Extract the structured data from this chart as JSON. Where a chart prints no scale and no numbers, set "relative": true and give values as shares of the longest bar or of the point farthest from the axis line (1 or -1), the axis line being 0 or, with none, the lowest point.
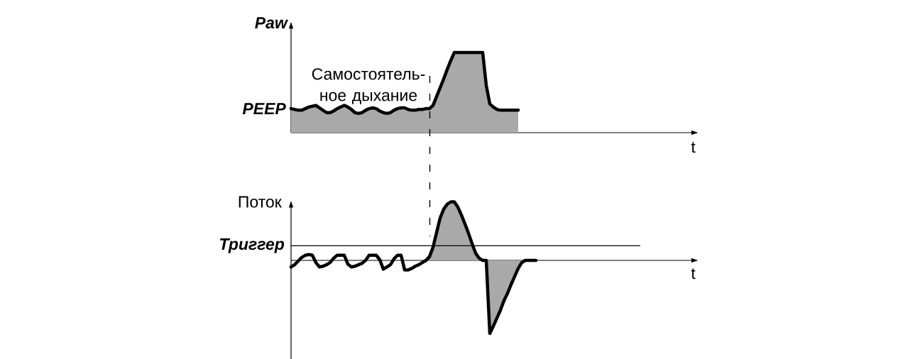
{
  "chart_data": [
    {
      "type": "area",
      "ylabel": "Paw",
      "xlabel": "t",
      "relative": true,
      "categories": [
        null,
        null,
        null,
        null,
        null,
        null,
        null,
        null,
        null,
        null,
        null,
        null,
        null,
        null,
        null,
        null,
        null,
        null,
        null,
        null,
        null,
        null,
        null,
        null,
        null,
        null,
        null,
        null,
        null,
        null,
        null,
        null,
        null,
        null,
        null,
        null,
        null,
        null,
        null,
        null,
        null,
        null,
        null,
        null,
        null,
        null,
        null,
        null,
        null,
        null,
        null,
        null,
        null,
        null,
        null,
        null,
        null,
        null,
        null,
        null,
        null,
        null,
        null,
        null,
        null,
        null,
        null,
        null,
        null,
        null,
        null,
        null,
        null,
        null,
        null,
        null,
        null,
        null,
        null,
        null,
        null,
        null,
        null,
        null,
        null,
        null,
        null,
        null,
        null,
        null,
        null,
        null,
        null,
        null,
        null,
        null,
        null,
        null,
        null,
        null,
        null,
        null,
        null,
        null,
        null,
        null,
        null,
        null,
        null,
        null,
        null,
        null,
        null,
        null,
        null
      ],
      "series": [
        {
          "color": "#a9a9a9",
          "values": [
            0.3,
            0.29,
            0.28,
            0.28,
            0.3,
            0.32,
            0.33,
            0.34,
            0.31,
            0.28,
            0.25,
            0.25,
            0.27,
            0.3,
            0.32,
            0.34,
            0.32,
            0.29,
            0.25,
            0.24,
            0.25,
            0.28,
            0.3,
            0.31,
            0.3,
            0.27,
            0.25,
            0.24,
            0.25,
            0.28,
            0.3,
            0.31,
            0.31,
            0.29,
            0.28,
            0.28,
            0.29,
            0.29,
            0.3,
            0.3,
            0.34,
            0.45,
            0.56,
            0.67,
            0.79,
            0.9,
            1,
            1,
            1,
            1,
            1,
            1,
            1,
            1,
            1,
            0.59,
            0.36,
            0.32,
            0.29,
            0.28,
            0.28,
            0.28,
            0.28,
            0.28,
            0.28,
            null,
            null,
            null,
            null,
            null,
            null,
            null,
            null,
            null,
            null,
            null,
            null,
            null,
            null,
            null,
            null,
            null,
            null,
            null,
            null,
            null,
            null,
            null,
            null,
            null,
            null,
            null,
            null,
            null,
            null,
            null,
            null,
            null,
            null,
            null,
            null,
            null,
            null,
            null,
            null,
            null,
            null,
            null,
            null,
            null,
            null,
            null,
            null,
            null,
            null
          ]
        }
      ],
      "annotations": [
        "Самостоятель- ное дыхание",
        "PEEP"
      ]
    },
    {
      "type": "area",
      "ylabel": "Поток",
      "xlabel": "t",
      "relative": true,
      "categories": [
        null,
        null,
        null,
        null,
        null,
        null,
        null,
        null,
        null,
        null,
        null,
        null,
        null,
        null,
        null,
        null,
        null,
        null,
        null,
        null,
        null,
        null,
        null,
        null,
        null,
        null,
        null,
        null,
        null,
        null,
        null,
        null,
        null,
        null,
        null,
        null,
        null,
        null,
        null,
        null,
        null,
        null,
        null,
        null,
        null,
        null,
        null,
        null,
        null,
        null,
        null,
        null,
        null,
        null,
        null,
        null,
        null,
        null,
        null,
        null,
        null,
        null,
        null,
        null,
        null,
        null,
        null,
        null,
        null,
        null,
        null,
        null,
        null,
        null,
        null,
        null,
        null,
        null,
        null,
        null,
        null,
        null,
        null,
        null,
        null,
        null,
        null,
        null,
        null,
        null,
        null,
        null,
        null,
        null,
        null,
        null,
        null,
        null,
        null,
        null,
        null,
        null,
        null,
        null,
        null,
        null,
        null,
        null,
        null,
        null,
        null,
        null,
        null,
        null,
        null
      ],
      "series": [
        {
          "type": "line",
          "color": "#000000",
          "values": [
            -0.09,
            -0.06,
            -0.01,
            0.04,
            0.07,
            0.08,
            0.07,
            -0.03,
            -0.09,
            -0.08,
            -0.06,
            -0.03,
            0.03,
            0.07,
            0.07,
            0.07,
            -0.05,
            -0.09,
            -0.08,
            -0.06,
            -0.04,
            0,
            0.07,
            0.07,
            0.07,
            0.01,
            -0.12,
            -0.09,
            -0.06,
            0.02,
            0.07,
            0.07,
            -0.13,
            -0.13,
            -0.11,
            -0.08,
            -0.06,
            -0.03,
            0,
            null,
            null,
            null,
            null,
            null,
            null,
            null,
            null,
            null,
            null,
            null,
            null,
            null,
            null,
            null,
            null,
            null,
            null,
            null,
            null,
            null,
            null,
            null,
            null,
            null,
            null,
            null,
            null,
            null,
            null,
            null,
            null,
            null,
            null,
            null,
            null,
            null,
            null,
            null,
            null,
            null,
            null,
            null,
            null,
            null,
            null,
            null,
            null,
            null,
            null,
            null,
            null,
            null,
            null,
            null,
            null,
            null,
            null,
            null,
            null,
            null,
            null,
            null,
            null,
            null,
            null,
            null,
            null,
            null,
            null,
            null,
            null,
            null,
            null,
            null,
            null
          ]
        },
        {
          "color": "#a9a9a9",
          "values": [
            null,
            null,
            null,
            null,
            null,
            null,
            null,
            null,
            null,
            null,
            null,
            null,
            null,
            null,
            null,
            null,
            null,
            null,
            null,
            null,
            null,
            null,
            null,
            null,
            null,
            null,
            null,
            null,
            null,
            null,
            null,
            null,
            null,
            null,
            null,
            null,
            null,
            null,
            0,
            0.05,
            0.18,
            0.38,
            0.58,
            0.7,
            0.77,
            0.8,
            0.8,
            0.73,
            0.62,
            0.5,
            0.37,
            0.23,
            0.1,
            0.03,
            0,
            0,
            -1,
            -0.9,
            -0.79,
            -0.68,
            -0.55,
            -0.45,
            -0.33,
            -0.22,
            -0.11,
            -0.03,
            0,
            0,
            0,
            0,
            null,
            null,
            null,
            null,
            null,
            null,
            null,
            null,
            null,
            null,
            null,
            null,
            null,
            null,
            null,
            null,
            null,
            null,
            null,
            null,
            null,
            null,
            null,
            null,
            null,
            null,
            null,
            null,
            null,
            null,
            null,
            null,
            null,
            null,
            null,
            null,
            null,
            null,
            null,
            null,
            null,
            null,
            null,
            null,
            null
          ]
        }
      ],
      "ref_lines": [
        {
          "axis": "y",
          "value": 0.2,
          "label": "Триггер"
        }
      ]
    }
  ]
}
